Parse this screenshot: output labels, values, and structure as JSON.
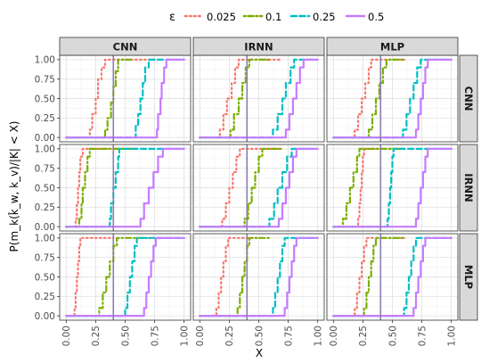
{
  "legend": {
    "title": "ε",
    "entries": [
      {
        "label": "0.025",
        "color": "#f8766d",
        "dash": "dotted"
      },
      {
        "label": "0.1",
        "color": "#7cae00",
        "dash": "dotdash"
      },
      {
        "label": "0.25",
        "color": "#00bfc4",
        "dash": "dashed"
      },
      {
        "label": "0.5",
        "color": "#c77cff",
        "dash": "solid"
      }
    ]
  },
  "axes": {
    "xlabel": "X",
    "ylabel": "P(m_k(k̂_w, k_v)/|K| < X)",
    "xticks": [
      "0.00",
      "0.25",
      "0.50",
      "0.75",
      "1.00"
    ],
    "yticks": [
      "0.00",
      "0.25",
      "0.50",
      "0.75",
      "1.00"
    ]
  },
  "col_strips": [
    "CNN",
    "IRNN",
    "MLP"
  ],
  "row_strips": [
    "CNN",
    "IRNN",
    "MLP"
  ],
  "vline_x": 0.4,
  "chart_data": {
    "type": "line",
    "subtype": "ecdf-facet-grid",
    "xlim": [
      0,
      1
    ],
    "ylim": [
      0,
      1
    ],
    "grid": true,
    "legend_position": "top",
    "series_names": [
      "0.025",
      "0.1",
      "0.25",
      "0.5"
    ],
    "panels": [
      {
        "row": "CNN",
        "col": "CNN",
        "series": [
          {
            "name": "0.025",
            "x": [
              0.0,
              0.18,
              0.2,
              0.22,
              0.25,
              0.27,
              0.3,
              0.33,
              0.8
            ],
            "y": [
              0.0,
              0.0,
              0.1,
              0.3,
              0.5,
              0.75,
              0.9,
              1.0,
              1.0
            ]
          },
          {
            "name": "0.1",
            "x": [
              0.0,
              0.3,
              0.33,
              0.35,
              0.38,
              0.4,
              0.42,
              0.44,
              0.55
            ],
            "y": [
              0.0,
              0.0,
              0.1,
              0.25,
              0.45,
              0.65,
              0.85,
              1.0,
              1.0
            ]
          },
          {
            "name": "0.25",
            "x": [
              0.0,
              0.57,
              0.59,
              0.61,
              0.63,
              0.65,
              0.67,
              0.7,
              1.0
            ],
            "y": [
              0.0,
              0.0,
              0.15,
              0.3,
              0.5,
              0.7,
              0.9,
              1.0,
              1.0
            ]
          },
          {
            "name": "0.5",
            "x": [
              0.0,
              0.75,
              0.77,
              0.78,
              0.8,
              0.81,
              0.83,
              0.85,
              1.0
            ],
            "y": [
              0.0,
              0.0,
              0.1,
              0.3,
              0.5,
              0.7,
              0.9,
              1.0,
              1.0
            ]
          }
        ]
      },
      {
        "row": "CNN",
        "col": "IRNN",
        "series": [
          {
            "name": "0.025",
            "x": [
              0.0,
              0.14,
              0.17,
              0.2,
              0.23,
              0.27,
              0.3,
              0.33,
              0.7
            ],
            "y": [
              0.0,
              0.0,
              0.1,
              0.3,
              0.5,
              0.7,
              0.9,
              1.0,
              1.0
            ]
          },
          {
            "name": "0.1",
            "x": [
              0.0,
              0.22,
              0.26,
              0.29,
              0.33,
              0.36,
              0.39,
              0.42,
              0.6
            ],
            "y": [
              0.0,
              0.0,
              0.1,
              0.3,
              0.5,
              0.7,
              0.9,
              1.0,
              1.0
            ]
          },
          {
            "name": "0.25",
            "x": [
              0.0,
              0.58,
              0.62,
              0.66,
              0.7,
              0.73,
              0.77,
              0.8,
              1.0
            ],
            "y": [
              0.0,
              0.0,
              0.1,
              0.3,
              0.5,
              0.7,
              0.9,
              1.0,
              1.0
            ]
          },
          {
            "name": "0.5",
            "x": [
              0.0,
              0.7,
              0.73,
              0.76,
              0.79,
              0.82,
              0.85,
              0.88,
              1.0
            ],
            "y": [
              0.0,
              0.0,
              0.1,
              0.3,
              0.5,
              0.7,
              0.9,
              1.0,
              1.0
            ]
          }
        ]
      },
      {
        "row": "CNN",
        "col": "MLP",
        "series": [
          {
            "name": "0.025",
            "x": [
              0.0,
              0.15,
              0.18,
              0.21,
              0.24,
              0.27,
              0.3,
              0.32,
              0.6
            ],
            "y": [
              0.0,
              0.0,
              0.1,
              0.3,
              0.5,
              0.7,
              0.9,
              1.0,
              1.0
            ]
          },
          {
            "name": "0.1",
            "x": [
              0.0,
              0.27,
              0.3,
              0.33,
              0.36,
              0.39,
              0.42,
              0.45,
              0.6
            ],
            "y": [
              0.0,
              0.0,
              0.1,
              0.3,
              0.5,
              0.7,
              0.9,
              1.0,
              1.0
            ]
          },
          {
            "name": "0.25",
            "x": [
              0.0,
              0.56,
              0.59,
              0.62,
              0.65,
              0.68,
              0.71,
              0.74,
              1.0
            ],
            "y": [
              0.0,
              0.0,
              0.1,
              0.3,
              0.5,
              0.7,
              0.9,
              1.0,
              1.0
            ]
          },
          {
            "name": "0.5",
            "x": [
              0.0,
              0.68,
              0.7,
              0.72,
              0.74,
              0.76,
              0.78,
              0.8,
              1.0
            ],
            "y": [
              0.0,
              0.0,
              0.1,
              0.3,
              0.5,
              0.7,
              0.9,
              1.0,
              1.0
            ]
          }
        ]
      },
      {
        "row": "IRNN",
        "col": "CNN",
        "series": [
          {
            "name": "0.025",
            "x": [
              0.0,
              0.07,
              0.08,
              0.09,
              0.1,
              0.11,
              0.12,
              0.14,
              0.6
            ],
            "y": [
              0.0,
              0.0,
              0.1,
              0.3,
              0.5,
              0.7,
              0.9,
              1.0,
              1.0
            ]
          },
          {
            "name": "0.1",
            "x": [
              0.0,
              0.1,
              0.11,
              0.13,
              0.14,
              0.16,
              0.18,
              0.2,
              0.6
            ],
            "y": [
              0.0,
              0.0,
              0.1,
              0.3,
              0.5,
              0.7,
              0.9,
              1.0,
              1.0
            ]
          },
          {
            "name": "0.25",
            "x": [
              0.0,
              0.36,
              0.37,
              0.38,
              0.4,
              0.42,
              0.44,
              0.45,
              1.0
            ],
            "y": [
              0.0,
              0.0,
              0.1,
              0.3,
              0.5,
              0.7,
              0.9,
              1.0,
              1.0
            ]
          },
          {
            "name": "0.5",
            "x": [
              0.0,
              0.6,
              0.63,
              0.66,
              0.7,
              0.74,
              0.78,
              0.82,
              1.0
            ],
            "y": [
              0.0,
              0.0,
              0.1,
              0.3,
              0.5,
              0.7,
              0.9,
              1.0,
              1.0
            ]
          }
        ]
      },
      {
        "row": "IRNN",
        "col": "IRNN",
        "series": [
          {
            "name": "0.025",
            "x": [
              0.0,
              0.16,
              0.19,
              0.22,
              0.25,
              0.28,
              0.31,
              0.34,
              0.7
            ],
            "y": [
              0.0,
              0.0,
              0.1,
              0.3,
              0.5,
              0.7,
              0.9,
              1.0,
              1.0
            ]
          },
          {
            "name": "0.1",
            "x": [
              0.0,
              0.35,
              0.38,
              0.41,
              0.44,
              0.47,
              0.5,
              0.53,
              0.7
            ],
            "y": [
              0.0,
              0.0,
              0.1,
              0.3,
              0.5,
              0.7,
              0.9,
              1.0,
              1.0
            ]
          },
          {
            "name": "0.25",
            "x": [
              0.0,
              0.55,
              0.59,
              0.63,
              0.66,
              0.7,
              0.74,
              0.78,
              1.0
            ],
            "y": [
              0.0,
              0.0,
              0.1,
              0.3,
              0.5,
              0.7,
              0.9,
              1.0,
              1.0
            ]
          },
          {
            "name": "0.5",
            "x": [
              0.0,
              0.64,
              0.67,
              0.7,
              0.73,
              0.76,
              0.79,
              0.82,
              1.0
            ],
            "y": [
              0.0,
              0.0,
              0.1,
              0.3,
              0.5,
              0.7,
              0.9,
              1.0,
              1.0
            ]
          }
        ]
      },
      {
        "row": "IRNN",
        "col": "MLP",
        "series": [
          {
            "name": "0.025",
            "x": [
              0.0,
              0.2,
              0.21,
              0.22,
              0.23,
              0.24,
              0.25,
              0.26,
              0.6
            ],
            "y": [
              0.0,
              0.0,
              0.1,
              0.3,
              0.5,
              0.7,
              0.9,
              1.0,
              1.0
            ]
          },
          {
            "name": "0.1",
            "x": [
              0.0,
              0.05,
              0.08,
              0.11,
              0.14,
              0.17,
              0.2,
              0.22,
              0.6
            ],
            "y": [
              0.0,
              0.0,
              0.1,
              0.3,
              0.5,
              0.7,
              0.9,
              1.0,
              1.0
            ]
          },
          {
            "name": "0.25",
            "x": [
              0.0,
              0.45,
              0.46,
              0.47,
              0.48,
              0.49,
              0.5,
              0.51,
              1.0
            ],
            "y": [
              0.0,
              0.0,
              0.1,
              0.3,
              0.5,
              0.7,
              0.9,
              1.0,
              1.0
            ]
          },
          {
            "name": "0.5",
            "x": [
              0.0,
              0.68,
              0.7,
              0.72,
              0.74,
              0.76,
              0.78,
              0.8,
              1.0
            ],
            "y": [
              0.0,
              0.0,
              0.1,
              0.3,
              0.5,
              0.7,
              0.9,
              1.0,
              1.0
            ]
          }
        ]
      },
      {
        "row": "MLP",
        "col": "CNN",
        "series": [
          {
            "name": "0.025",
            "x": [
              0.0,
              0.05,
              0.07,
              0.08,
              0.09,
              0.1,
              0.11,
              0.12,
              0.4
            ],
            "y": [
              0.0,
              0.0,
              0.1,
              0.3,
              0.5,
              0.7,
              0.9,
              1.0,
              1.0
            ]
          },
          {
            "name": "0.1",
            "x": [
              0.0,
              0.25,
              0.28,
              0.31,
              0.34,
              0.37,
              0.4,
              0.43,
              0.7
            ],
            "y": [
              0.0,
              0.0,
              0.1,
              0.3,
              0.5,
              0.7,
              0.9,
              1.0,
              1.0
            ]
          },
          {
            "name": "0.25",
            "x": [
              0.0,
              0.48,
              0.5,
              0.52,
              0.54,
              0.56,
              0.58,
              0.6,
              1.0
            ],
            "y": [
              0.0,
              0.0,
              0.1,
              0.3,
              0.5,
              0.7,
              0.9,
              1.0,
              1.0
            ]
          },
          {
            "name": "0.5",
            "x": [
              0.0,
              0.64,
              0.66,
              0.68,
              0.7,
              0.72,
              0.74,
              0.76,
              1.0
            ],
            "y": [
              0.0,
              0.0,
              0.1,
              0.3,
              0.5,
              0.7,
              0.9,
              1.0,
              1.0
            ]
          }
        ]
      },
      {
        "row": "MLP",
        "col": "IRNN",
        "series": [
          {
            "name": "0.025",
            "x": [
              0.0,
              0.12,
              0.14,
              0.16,
              0.18,
              0.2,
              0.22,
              0.24,
              0.5
            ],
            "y": [
              0.0,
              0.0,
              0.1,
              0.3,
              0.5,
              0.7,
              0.9,
              1.0,
              1.0
            ]
          },
          {
            "name": "0.1",
            "x": [
              0.0,
              0.3,
              0.32,
              0.34,
              0.36,
              0.38,
              0.4,
              0.42,
              0.6
            ],
            "y": [
              0.0,
              0.0,
              0.1,
              0.3,
              0.5,
              0.7,
              0.9,
              1.0,
              1.0
            ]
          },
          {
            "name": "0.25",
            "x": [
              0.0,
              0.6,
              0.62,
              0.64,
              0.66,
              0.68,
              0.7,
              0.72,
              1.0
            ],
            "y": [
              0.0,
              0.0,
              0.1,
              0.3,
              0.5,
              0.7,
              0.9,
              1.0,
              1.0
            ]
          },
          {
            "name": "0.5",
            "x": [
              0.0,
              0.7,
              0.72,
              0.74,
              0.76,
              0.78,
              0.8,
              0.82,
              1.0
            ],
            "y": [
              0.0,
              0.0,
              0.1,
              0.3,
              0.5,
              0.7,
              0.9,
              1.0,
              1.0
            ]
          }
        ]
      },
      {
        "row": "MLP",
        "col": "MLP",
        "series": [
          {
            "name": "0.025",
            "x": [
              0.0,
              0.16,
              0.18,
              0.2,
              0.22,
              0.24,
              0.26,
              0.28,
              0.6
            ],
            "y": [
              0.0,
              0.0,
              0.1,
              0.3,
              0.5,
              0.7,
              0.9,
              1.0,
              1.0
            ]
          },
          {
            "name": "0.1",
            "x": [
              0.0,
              0.24,
              0.26,
              0.28,
              0.3,
              0.32,
              0.34,
              0.36,
              0.6
            ],
            "y": [
              0.0,
              0.0,
              0.1,
              0.3,
              0.5,
              0.7,
              0.9,
              1.0,
              1.0
            ]
          },
          {
            "name": "0.25",
            "x": [
              0.0,
              0.58,
              0.6,
              0.62,
              0.64,
              0.66,
              0.68,
              0.7,
              1.0
            ],
            "y": [
              0.0,
              0.0,
              0.1,
              0.3,
              0.5,
              0.7,
              0.9,
              1.0,
              1.0
            ]
          },
          {
            "name": "0.5",
            "x": [
              0.0,
              0.66,
              0.68,
              0.7,
              0.72,
              0.74,
              0.76,
              0.78,
              1.0
            ],
            "y": [
              0.0,
              0.0,
              0.1,
              0.3,
              0.5,
              0.7,
              0.9,
              1.0,
              1.0
            ]
          }
        ]
      }
    ]
  }
}
